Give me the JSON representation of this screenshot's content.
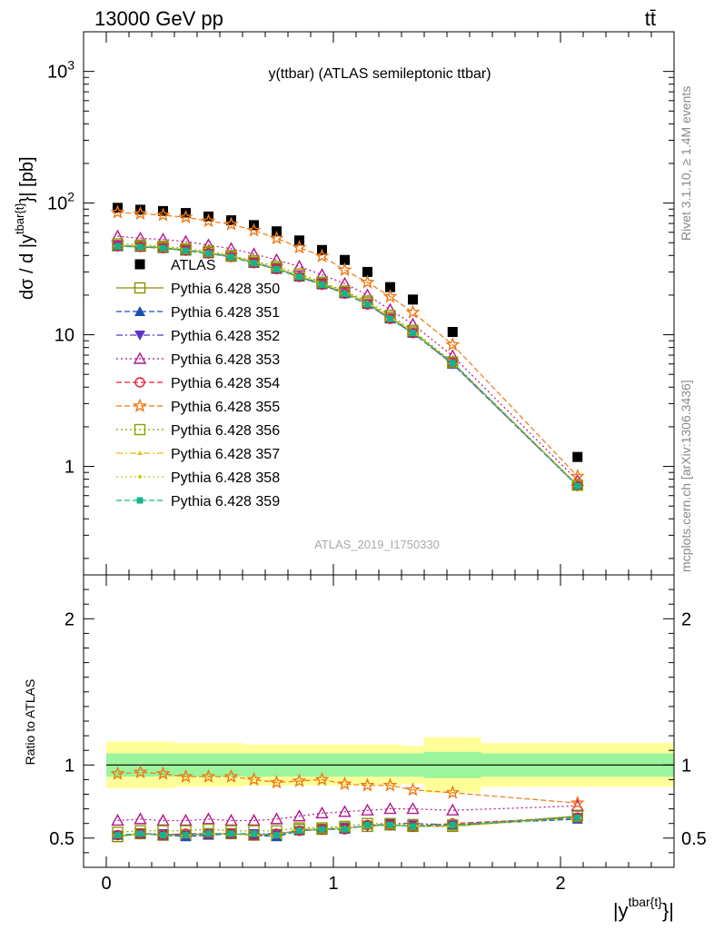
{
  "header": {
    "left": "13000 GeV pp",
    "right": "tt̄"
  },
  "side_labels": {
    "rivet": "Rivet 3.1.10, ≥ 1.4M events",
    "mcplots": "mcplots.cern.ch [arXiv:1306.3436]"
  },
  "watermark": "ATLAS_2019_I1750330",
  "chart_data": [
    {
      "type": "line",
      "panel": "main",
      "title": "y(ttbar) (ATLAS semileptonic ttbar)",
      "ylabel": "dσ / d |y^{tbar{t}}| [pb]",
      "ylabel_parts": {
        "main": "dσ / d |y",
        "sup": "tbar{t}",
        "tail": "}| [pb]"
      },
      "yscale": "log",
      "ylim": [
        0.15,
        2000
      ],
      "xlim": [
        -0.1,
        2.5
      ],
      "x": [
        0.05,
        0.15,
        0.25,
        0.35,
        0.45,
        0.55,
        0.65,
        0.75,
        0.85,
        0.95,
        1.05,
        1.15,
        1.25,
        1.35,
        1.525,
        2.075
      ],
      "ytick_labels": [
        "1",
        "10",
        "10^2",
        "10^3"
      ],
      "legend_position": "center-left",
      "series": [
        {
          "name": "ATLAS",
          "marker": "square-filled",
          "line": "none",
          "color": "#000000",
          "values": [
            92,
            89,
            87,
            84,
            79,
            74,
            68,
            61,
            52,
            44,
            37,
            30,
            23,
            18.5,
            10.5,
            1.18
          ]
        },
        {
          "name": "Pythia 6.428 350",
          "marker": "square-open",
          "line": "solid",
          "color": "#8b8b00",
          "values": [
            47.5,
            47,
            46,
            44,
            42,
            39.5,
            35.5,
            32,
            28,
            24.5,
            21,
            17.5,
            13.5,
            10.5,
            6.1,
            0.72
          ]
        },
        {
          "name": "Pythia 6.428 351",
          "marker": "triangle-up-filled",
          "line": "dashed",
          "color": "#1e50b4",
          "values": [
            47,
            46.5,
            45.5,
            43.5,
            41.5,
            39,
            35,
            31.5,
            27.5,
            24,
            20.5,
            17,
            13.2,
            10.3,
            6,
            0.71
          ]
        },
        {
          "name": "Pythia 6.428 352",
          "marker": "triangle-down-filled",
          "line": "dashdot",
          "color": "#5a32c8",
          "values": [
            47,
            46.5,
            45.5,
            43.5,
            41.5,
            39,
            35,
            31.5,
            27.5,
            24,
            20.5,
            17,
            13.2,
            10.3,
            6,
            0.71
          ]
        },
        {
          "name": "Pythia 6.428 353",
          "marker": "triangle-up-open",
          "line": "dotted",
          "color": "#b4148c",
          "values": [
            56,
            54,
            53,
            51,
            48,
            45,
            41,
            37,
            33,
            28.5,
            24.5,
            20,
            15.5,
            12,
            6.9,
            0.78
          ]
        },
        {
          "name": "Pythia 6.428 354",
          "marker": "circle-open",
          "line": "dashed",
          "color": "#e61e32",
          "values": [
            47,
            46.5,
            45.5,
            43.5,
            41.5,
            39,
            35,
            31.5,
            27.5,
            24,
            20.5,
            17,
            13.2,
            10.3,
            6.1,
            0.71
          ]
        },
        {
          "name": "Pythia 6.428 355",
          "marker": "star-open",
          "line": "dashed",
          "color": "#f07814",
          "values": [
            85,
            83,
            81,
            78,
            73,
            69,
            62,
            54,
            46,
            39.5,
            31,
            25,
            19.5,
            14.8,
            8.4,
            0.84
          ]
        },
        {
          "name": "Pythia 6.428 356",
          "marker": "square-open",
          "line": "dotted",
          "color": "#8ca000",
          "values": [
            49,
            48,
            47,
            45,
            43,
            40,
            36.5,
            33,
            29,
            25,
            21.5,
            18,
            14,
            10.8,
            6.2,
            0.72
          ]
        },
        {
          "name": "Pythia 6.428 357",
          "marker": "triangle-small",
          "line": "dashdot",
          "color": "#e6be14",
          "values": [
            47.5,
            47,
            46,
            44,
            42,
            39.5,
            35.5,
            32,
            28,
            24.5,
            21,
            17.5,
            13.5,
            10.5,
            6.1,
            0.72
          ]
        },
        {
          "name": "Pythia 6.428 358",
          "marker": "dot",
          "line": "dotted",
          "color": "#c8d214",
          "values": [
            47.5,
            47,
            46,
            44,
            42,
            39.5,
            35.5,
            32,
            28,
            24.5,
            21,
            17.5,
            13.5,
            10.5,
            6.1,
            0.72
          ]
        },
        {
          "name": "Pythia 6.428 359",
          "marker": "square-filled-small",
          "line": "dashed",
          "color": "#14b48c",
          "values": [
            47,
            46.5,
            45.5,
            43.5,
            41.5,
            39,
            35,
            31.5,
            27.5,
            24,
            20.5,
            17,
            13.2,
            10.3,
            6.1,
            0.71
          ]
        }
      ]
    },
    {
      "type": "line",
      "panel": "ratio",
      "ylabel": "Ratio to ATLAS",
      "ylim": [
        0.3,
        2.3
      ],
      "xlim": [
        -0.1,
        2.5
      ],
      "xlabel_parts": {
        "main": "|y",
        "sup": "tbar{t}",
        "tail": "}|"
      },
      "xtick_labels": [
        "0",
        "1",
        "2"
      ],
      "ytick_labels": [
        "0.5",
        "1",
        "2"
      ],
      "bands": {
        "edges": [
          0.0,
          0.1,
          0.2,
          0.3,
          0.4,
          0.5,
          0.6,
          0.7,
          0.8,
          0.9,
          1.0,
          1.1,
          1.2,
          1.3,
          1.4,
          1.65,
          2.5
        ],
        "inner": [
          0.08,
          0.08,
          0.08,
          0.08,
          0.08,
          0.08,
          0.08,
          0.08,
          0.08,
          0.08,
          0.08,
          0.08,
          0.08,
          0.08,
          0.09,
          0.08
        ],
        "outer": [
          0.16,
          0.16,
          0.16,
          0.15,
          0.15,
          0.15,
          0.14,
          0.14,
          0.14,
          0.14,
          0.14,
          0.14,
          0.14,
          0.13,
          0.19,
          0.15
        ],
        "inner_color": "#9cf59c",
        "outer_color": "#ffff99"
      },
      "reference_line": 1.0,
      "x": [
        0.05,
        0.15,
        0.25,
        0.35,
        0.45,
        0.55,
        0.65,
        0.75,
        0.85,
        0.95,
        1.05,
        1.15,
        1.25,
        1.35,
        1.525,
        2.075
      ],
      "series": [
        {
          "name": "Pythia 6.428 350",
          "values": [
            0.51,
            0.53,
            0.52,
            0.52,
            0.53,
            0.53,
            0.52,
            0.52,
            0.56,
            0.56,
            0.57,
            0.58,
            0.59,
            0.58,
            0.58,
            0.65
          ]
        },
        {
          "name": "Pythia 6.428 351",
          "values": [
            0.52,
            0.53,
            0.52,
            0.51,
            0.52,
            0.53,
            0.52,
            0.51,
            0.55,
            0.56,
            0.56,
            0.59,
            0.59,
            0.58,
            0.59,
            0.63
          ]
        },
        {
          "name": "Pythia 6.428 352",
          "values": [
            0.52,
            0.53,
            0.53,
            0.52,
            0.53,
            0.53,
            0.53,
            0.53,
            0.55,
            0.56,
            0.57,
            0.58,
            0.6,
            0.6,
            0.59,
            0.64
          ]
        },
        {
          "name": "Pythia 6.428 353",
          "values": [
            0.62,
            0.63,
            0.62,
            0.62,
            0.63,
            0.62,
            0.62,
            0.63,
            0.65,
            0.67,
            0.68,
            0.69,
            0.7,
            0.7,
            0.69,
            0.72
          ]
        },
        {
          "name": "Pythia 6.428 354",
          "values": [
            0.52,
            0.53,
            0.52,
            0.53,
            0.53,
            0.53,
            0.52,
            0.53,
            0.55,
            0.56,
            0.56,
            0.59,
            0.59,
            0.58,
            0.6,
            0.64
          ]
        },
        {
          "name": "Pythia 6.428 355",
          "values": [
            0.94,
            0.95,
            0.94,
            0.92,
            0.92,
            0.92,
            0.9,
            0.88,
            0.89,
            0.9,
            0.87,
            0.86,
            0.86,
            0.83,
            0.81,
            0.74
          ]
        },
        {
          "name": "Pythia 6.428 356",
          "values": [
            0.54,
            0.55,
            0.55,
            0.55,
            0.56,
            0.55,
            0.55,
            0.55,
            0.57,
            0.57,
            0.58,
            0.6,
            0.6,
            0.59,
            0.59,
            0.65
          ]
        },
        {
          "name": "Pythia 6.428 357",
          "values": [
            0.52,
            0.53,
            0.52,
            0.52,
            0.53,
            0.53,
            0.52,
            0.52,
            0.56,
            0.56,
            0.57,
            0.58,
            0.59,
            0.58,
            0.58,
            0.64
          ]
        },
        {
          "name": "Pythia 6.428 358",
          "values": [
            0.52,
            0.53,
            0.52,
            0.52,
            0.53,
            0.53,
            0.52,
            0.52,
            0.56,
            0.56,
            0.57,
            0.58,
            0.59,
            0.58,
            0.58,
            0.64
          ]
        },
        {
          "name": "Pythia 6.428 359",
          "values": [
            0.52,
            0.53,
            0.52,
            0.52,
            0.53,
            0.53,
            0.53,
            0.52,
            0.55,
            0.56,
            0.56,
            0.59,
            0.59,
            0.58,
            0.59,
            0.64
          ]
        }
      ]
    }
  ]
}
